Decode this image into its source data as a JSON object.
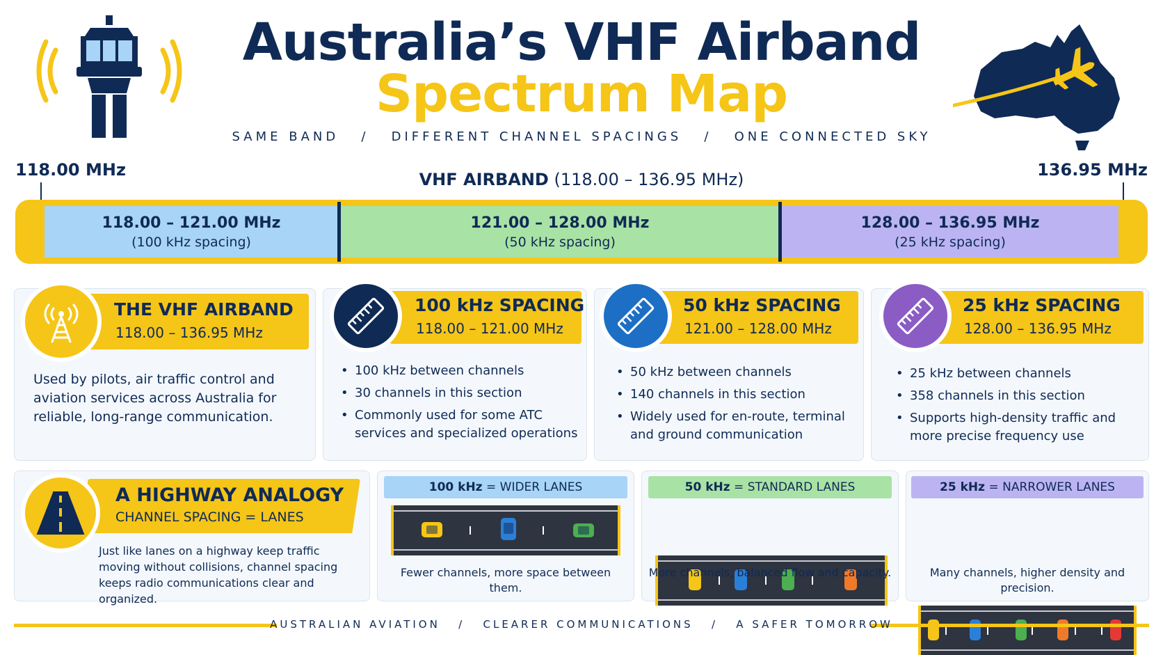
{
  "header": {
    "title_line1": "Australia’s VHF Airband",
    "title_line2": "Spectrum Map",
    "tagline": "SAME BAND   /   DIFFERENT CHANNEL SPACINGS   /   ONE CONNECTED SKY"
  },
  "band": {
    "start_label": "118.00 MHz",
    "end_label": "136.95 MHz",
    "title_bold": "VHF AIRBAND",
    "title_range": "(118.00 – 136.95 MHz)",
    "segments": [
      {
        "range": "118.00 – 121.00 MHz",
        "spacing": "(100 kHz spacing)",
        "color": "#a8d4f7"
      },
      {
        "range": "121.00 – 128.00 MHz",
        "spacing": "(50 kHz spacing)",
        "color": "#a9e2a5"
      },
      {
        "range": "128.00 – 136.95 MHz",
        "spacing": "(25 kHz spacing)",
        "color": "#bcb4f2"
      }
    ]
  },
  "cards": {
    "airband": {
      "heading": "THE VHF AIRBAND",
      "range": "118.00 – 136.95 MHz",
      "body": "Used by pilots, air traffic control and aviation services across Australia for reliable, long-range communication.",
      "icon": "radio-tower-icon"
    },
    "spacing100": {
      "heading": "100 kHz SPACING",
      "range": "118.00 – 121.00 MHz",
      "bullets": [
        "100 kHz between channels",
        "30 channels in this section",
        "Commonly used for some ATC services and specialized operations"
      ],
      "icon": "ruler-icon",
      "color": "#0f2a55"
    },
    "spacing50": {
      "heading": "50 kHz SPACING",
      "range": "121.00 – 128.00 MHz",
      "bullets": [
        "50 kHz between channels",
        "140 channels in this section",
        "Widely used for en-route, terminal and ground communication"
      ],
      "icon": "ruler-icon",
      "color": "#1c6fc4"
    },
    "spacing25": {
      "heading": "25 kHz SPACING",
      "range": "128.00 – 136.95 MHz",
      "bullets": [
        "25 kHz between channels",
        "358 channels in this section",
        "Supports high-density traffic and more precise frequency use"
      ],
      "icon": "ruler-icon",
      "color": "#8a5cc4"
    }
  },
  "analogy": {
    "heading": "A HIGHWAY ANALOGY",
    "subheading": "CHANNEL SPACING = LANES",
    "body": "Just like lanes on a highway keep traffic moving without collisions, channel spacing keeps radio communications clear and organized.",
    "icon": "road-icon"
  },
  "lanes": [
    {
      "bold": "100 kHz",
      "rest": " = WIDER LANES",
      "caption": "Fewer channels, more space between them.",
      "color": "#a8d4f7"
    },
    {
      "bold": "50 kHz",
      "rest": " = STANDARD LANES",
      "caption": "More channels, balanced flow and capacity.",
      "color": "#a9e2a5"
    },
    {
      "bold": "25 kHz",
      "rest": " = NARROWER LANES",
      "caption": "Many channels, higher density and precision.",
      "color": "#bcb4f2"
    }
  ],
  "footer": {
    "text": "AUSTRALIAN AVIATION   /   CLEARER COMMUNICATIONS   /   A SAFER TOMORROW"
  }
}
